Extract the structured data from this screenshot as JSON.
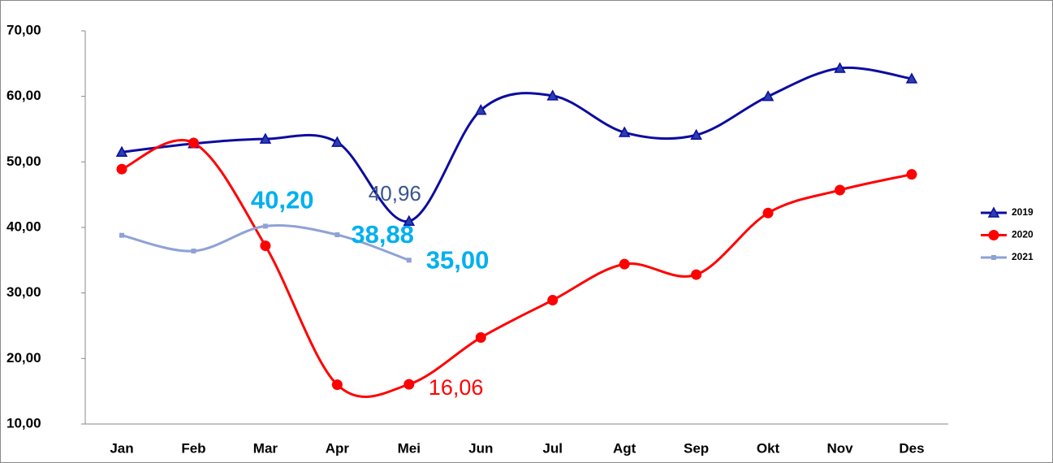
{
  "chart_data": {
    "type": "line",
    "categories": [
      "Jan",
      "Feb",
      "Mar",
      "Apr",
      "Mei",
      "Jun",
      "Jul",
      "Agt",
      "Sep",
      "Okt",
      "Nov",
      "Des"
    ],
    "series": [
      {
        "name": "2019",
        "color": "#0c0ca0",
        "marker": "triangle",
        "values": [
          51.5,
          52.8,
          53.5,
          53.0,
          40.96,
          57.9,
          60.1,
          54.5,
          54.1,
          60.0,
          64.3,
          62.7
        ],
        "value_labels": [
          null,
          null,
          null,
          null,
          "40,96",
          null,
          null,
          null,
          null,
          null,
          null,
          null
        ]
      },
      {
        "name": "2020",
        "color": "#ff0000",
        "marker": "circle",
        "values": [
          48.9,
          52.9,
          37.2,
          16.0,
          16.06,
          23.2,
          28.9,
          34.4,
          32.8,
          42.2,
          45.7,
          48.1
        ],
        "value_labels": [
          null,
          null,
          null,
          null,
          "16,06",
          null,
          null,
          null,
          null,
          null,
          null,
          null
        ]
      },
      {
        "name": "2021",
        "color": "#8fa2d6",
        "marker": "square",
        "values": [
          38.8,
          36.4,
          40.2,
          38.88,
          35.0,
          null,
          null,
          null,
          null,
          null,
          null,
          null
        ],
        "value_labels": [
          null,
          null,
          "40,20",
          "38,88",
          "35,00",
          null,
          null,
          null,
          null,
          null,
          null,
          null
        ]
      }
    ],
    "ylim": [
      10,
      70
    ],
    "yticks": [
      {
        "value": 10,
        "label": "10,00"
      },
      {
        "value": 20,
        "label": "20,00"
      },
      {
        "value": 30,
        "label": "30,00"
      },
      {
        "value": 40,
        "label": "40,00"
      },
      {
        "value": 50,
        "label": "50,00"
      },
      {
        "value": 60,
        "label": "60,00"
      },
      {
        "value": 70,
        "label": "70,00"
      }
    ],
    "grid": false,
    "legend": "right"
  }
}
